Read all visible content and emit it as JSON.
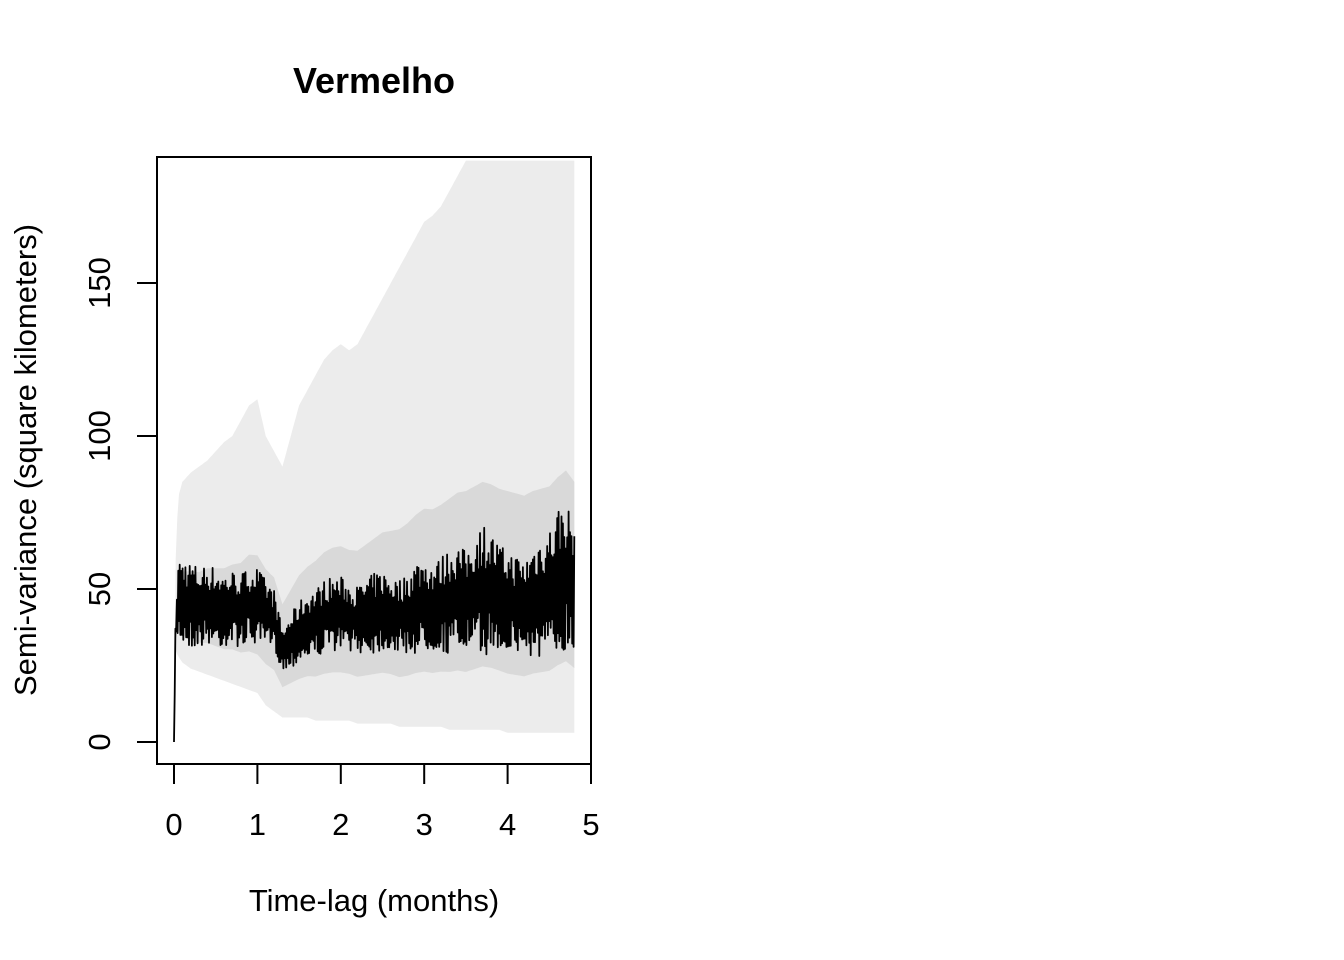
{
  "chart_data": {
    "type": "line",
    "title": "Vermelho",
    "xlabel": "Time-lag (months)",
    "ylabel": "Semi-variance (square kilometers)",
    "xlim": [
      0,
      5
    ],
    "ylim": [
      0,
      190
    ],
    "xticks": [
      "0",
      "1",
      "2",
      "3",
      "4",
      "5"
    ],
    "yticks": [
      "0",
      "50",
      "100",
      "150"
    ],
    "grid": false,
    "legend": "none",
    "colors": {
      "line": "#000000",
      "band_inner": "#d9d9d9",
      "band_outer": "#ececec"
    },
    "series": [
      {
        "x": [
          0,
          0.02,
          0.05,
          0.1,
          0.2,
          0.3,
          0.4,
          0.5,
          0.6,
          0.7,
          0.8,
          0.9,
          1.0,
          1.1,
          1.2,
          1.3,
          1.4,
          1.5,
          1.6,
          1.7,
          1.8,
          1.9,
          2.0,
          2.1,
          2.2,
          2.3,
          2.4,
          2.5,
          2.6,
          2.7,
          2.8,
          2.9,
          3.0,
          3.1,
          3.2,
          3.3,
          3.4,
          3.5,
          3.6,
          3.7,
          3.8,
          3.9,
          4.0,
          4.1,
          4.2,
          4.3,
          4.4,
          4.5,
          4.6,
          4.7,
          4.8
        ],
        "mean": [
          0,
          38,
          47,
          46,
          45,
          44,
          45,
          44,
          43,
          44,
          43,
          45,
          44,
          42,
          40,
          30,
          33,
          36,
          38,
          39,
          41,
          42,
          42,
          41,
          40,
          41,
          42,
          43,
          42,
          41,
          42,
          44,
          45,
          44,
          45,
          46,
          47,
          46,
          48,
          50,
          49,
          47,
          46,
          45,
          44,
          46,
          47,
          48,
          52,
          55,
          50
        ],
        "amplitude": [
          0,
          5,
          12,
          13,
          13,
          12,
          12,
          12,
          11,
          11,
          11,
          11,
          12,
          10,
          9,
          6,
          8,
          9,
          10,
          10,
          11,
          11,
          11,
          10,
          10,
          11,
          12,
          12,
          11,
          11,
          12,
          14,
          14,
          13,
          14,
          16,
          16,
          15,
          18,
          20,
          18,
          16,
          15,
          15,
          14,
          17,
          19,
          20,
          23,
          22,
          20
        ],
        "ci_lower": [
          0,
          30,
          28,
          26,
          24,
          23,
          22,
          21,
          20,
          19,
          18,
          17,
          16,
          12,
          10,
          8,
          8,
          8,
          8,
          7,
          7,
          7,
          7,
          7,
          6,
          6,
          6,
          6,
          6,
          5,
          5,
          5,
          5,
          5,
          5,
          4,
          4,
          4,
          4,
          4,
          4,
          4,
          3,
          3,
          3,
          3,
          3,
          3,
          3,
          3,
          3
        ],
        "ci_upper": [
          0,
          60,
          80,
          85,
          88,
          90,
          92,
          95,
          98,
          100,
          105,
          110,
          112,
          100,
          95,
          90,
          100,
          110,
          115,
          120,
          125,
          128,
          130,
          128,
          130,
          135,
          140,
          145,
          150,
          155,
          160,
          165,
          170,
          172,
          175,
          180,
          185,
          190,
          190,
          190,
          190,
          190,
          190,
          190,
          190,
          190,
          190,
          190,
          190,
          190,
          190
        ]
      }
    ]
  }
}
